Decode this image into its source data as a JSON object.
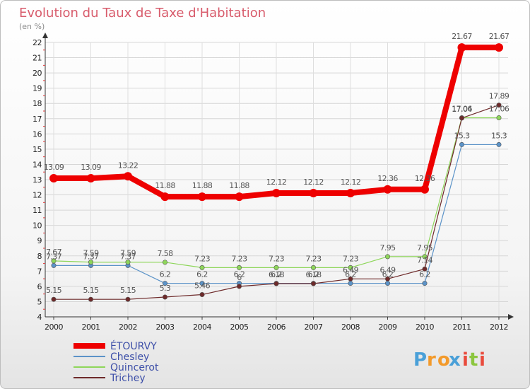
{
  "chart_data": {
    "type": "line",
    "title": "Evolution du Taux de Taxe d'Habitation",
    "ylabel": "(en %)",
    "x": [
      "2000",
      "2001",
      "2002",
      "2003",
      "2004",
      "2005",
      "2006",
      "2007",
      "2008",
      "2009",
      "2010",
      "2011",
      "2012"
    ],
    "ylim": [
      4,
      22
    ],
    "yticks": [
      "4",
      "5",
      "6",
      "7",
      "8",
      "9",
      "10",
      "11",
      "12",
      "13",
      "14",
      "15",
      "16",
      "17",
      "18",
      "19",
      "20",
      "21",
      "22"
    ],
    "series": [
      {
        "name": "ÉTOURVY",
        "color": "#ee0000",
        "width": 8,
        "values": [
          13.09,
          13.09,
          13.22,
          11.88,
          11.88,
          11.88,
          12.12,
          12.12,
          12.12,
          12.36,
          12.36,
          21.67,
          21.67
        ],
        "labels": [
          "13.09",
          "13.09",
          "13.22",
          "11.88",
          "11.88",
          "11.88",
          "12.12",
          "12.12",
          "12.12",
          "12.36",
          "12.36",
          "21.67",
          "21.67"
        ]
      },
      {
        "name": "Chesley",
        "color": "#5b93c8",
        "width": 1.2,
        "values": [
          7.37,
          7.37,
          7.37,
          6.2,
          6.2,
          6.2,
          6.2,
          6.2,
          6.2,
          6.2,
          6.2,
          15.3,
          15.3
        ],
        "labels": [
          "7.37",
          "7.37",
          "7.37",
          "6.2",
          "6.2",
          "6.2",
          "6.2",
          "6.2",
          "6.2",
          "6.2",
          "6.2",
          "15.3",
          "15.3"
        ]
      },
      {
        "name": "Quincerot",
        "color": "#8ed65a",
        "width": 1.2,
        "values": [
          7.67,
          7.59,
          7.59,
          7.58,
          7.23,
          7.23,
          7.23,
          7.23,
          7.23,
          7.95,
          7.95,
          17.06,
          17.06
        ],
        "labels": [
          "7.67",
          "7.59",
          "7.59",
          "7.58",
          "7.23",
          "7.23",
          "7.23",
          "7.23",
          "7.23",
          "7.95",
          "7.95",
          "17.06",
          "17.06"
        ]
      },
      {
        "name": "Trichey",
        "color": "#6e2a2a",
        "width": 1.2,
        "values": [
          5.15,
          5.15,
          5.15,
          5.3,
          5.46,
          6.0,
          6.18,
          6.18,
          6.49,
          6.49,
          7.14,
          17.04,
          17.89
        ],
        "labels": [
          "5.15",
          "5.15",
          "5.15",
          "5.3",
          "5.46",
          "6",
          "6.18",
          "6.18",
          "6.49",
          "6.49",
          "7.14",
          "17.04",
          "17.89"
        ]
      }
    ]
  },
  "legend": [
    "ÉTOURVY",
    "Chesley",
    "Quincerot",
    "Trichey"
  ],
  "logo": {
    "text": "Proxiti",
    "letters": [
      "P",
      "r",
      "o",
      "x",
      "i",
      "t",
      "i"
    ],
    "colors": [
      "#4aa0d8",
      "#f39a2b",
      "#f39a2b",
      "#4aa0d8",
      "#e94b3c",
      "#8cc63f",
      "#e94b3c"
    ]
  }
}
